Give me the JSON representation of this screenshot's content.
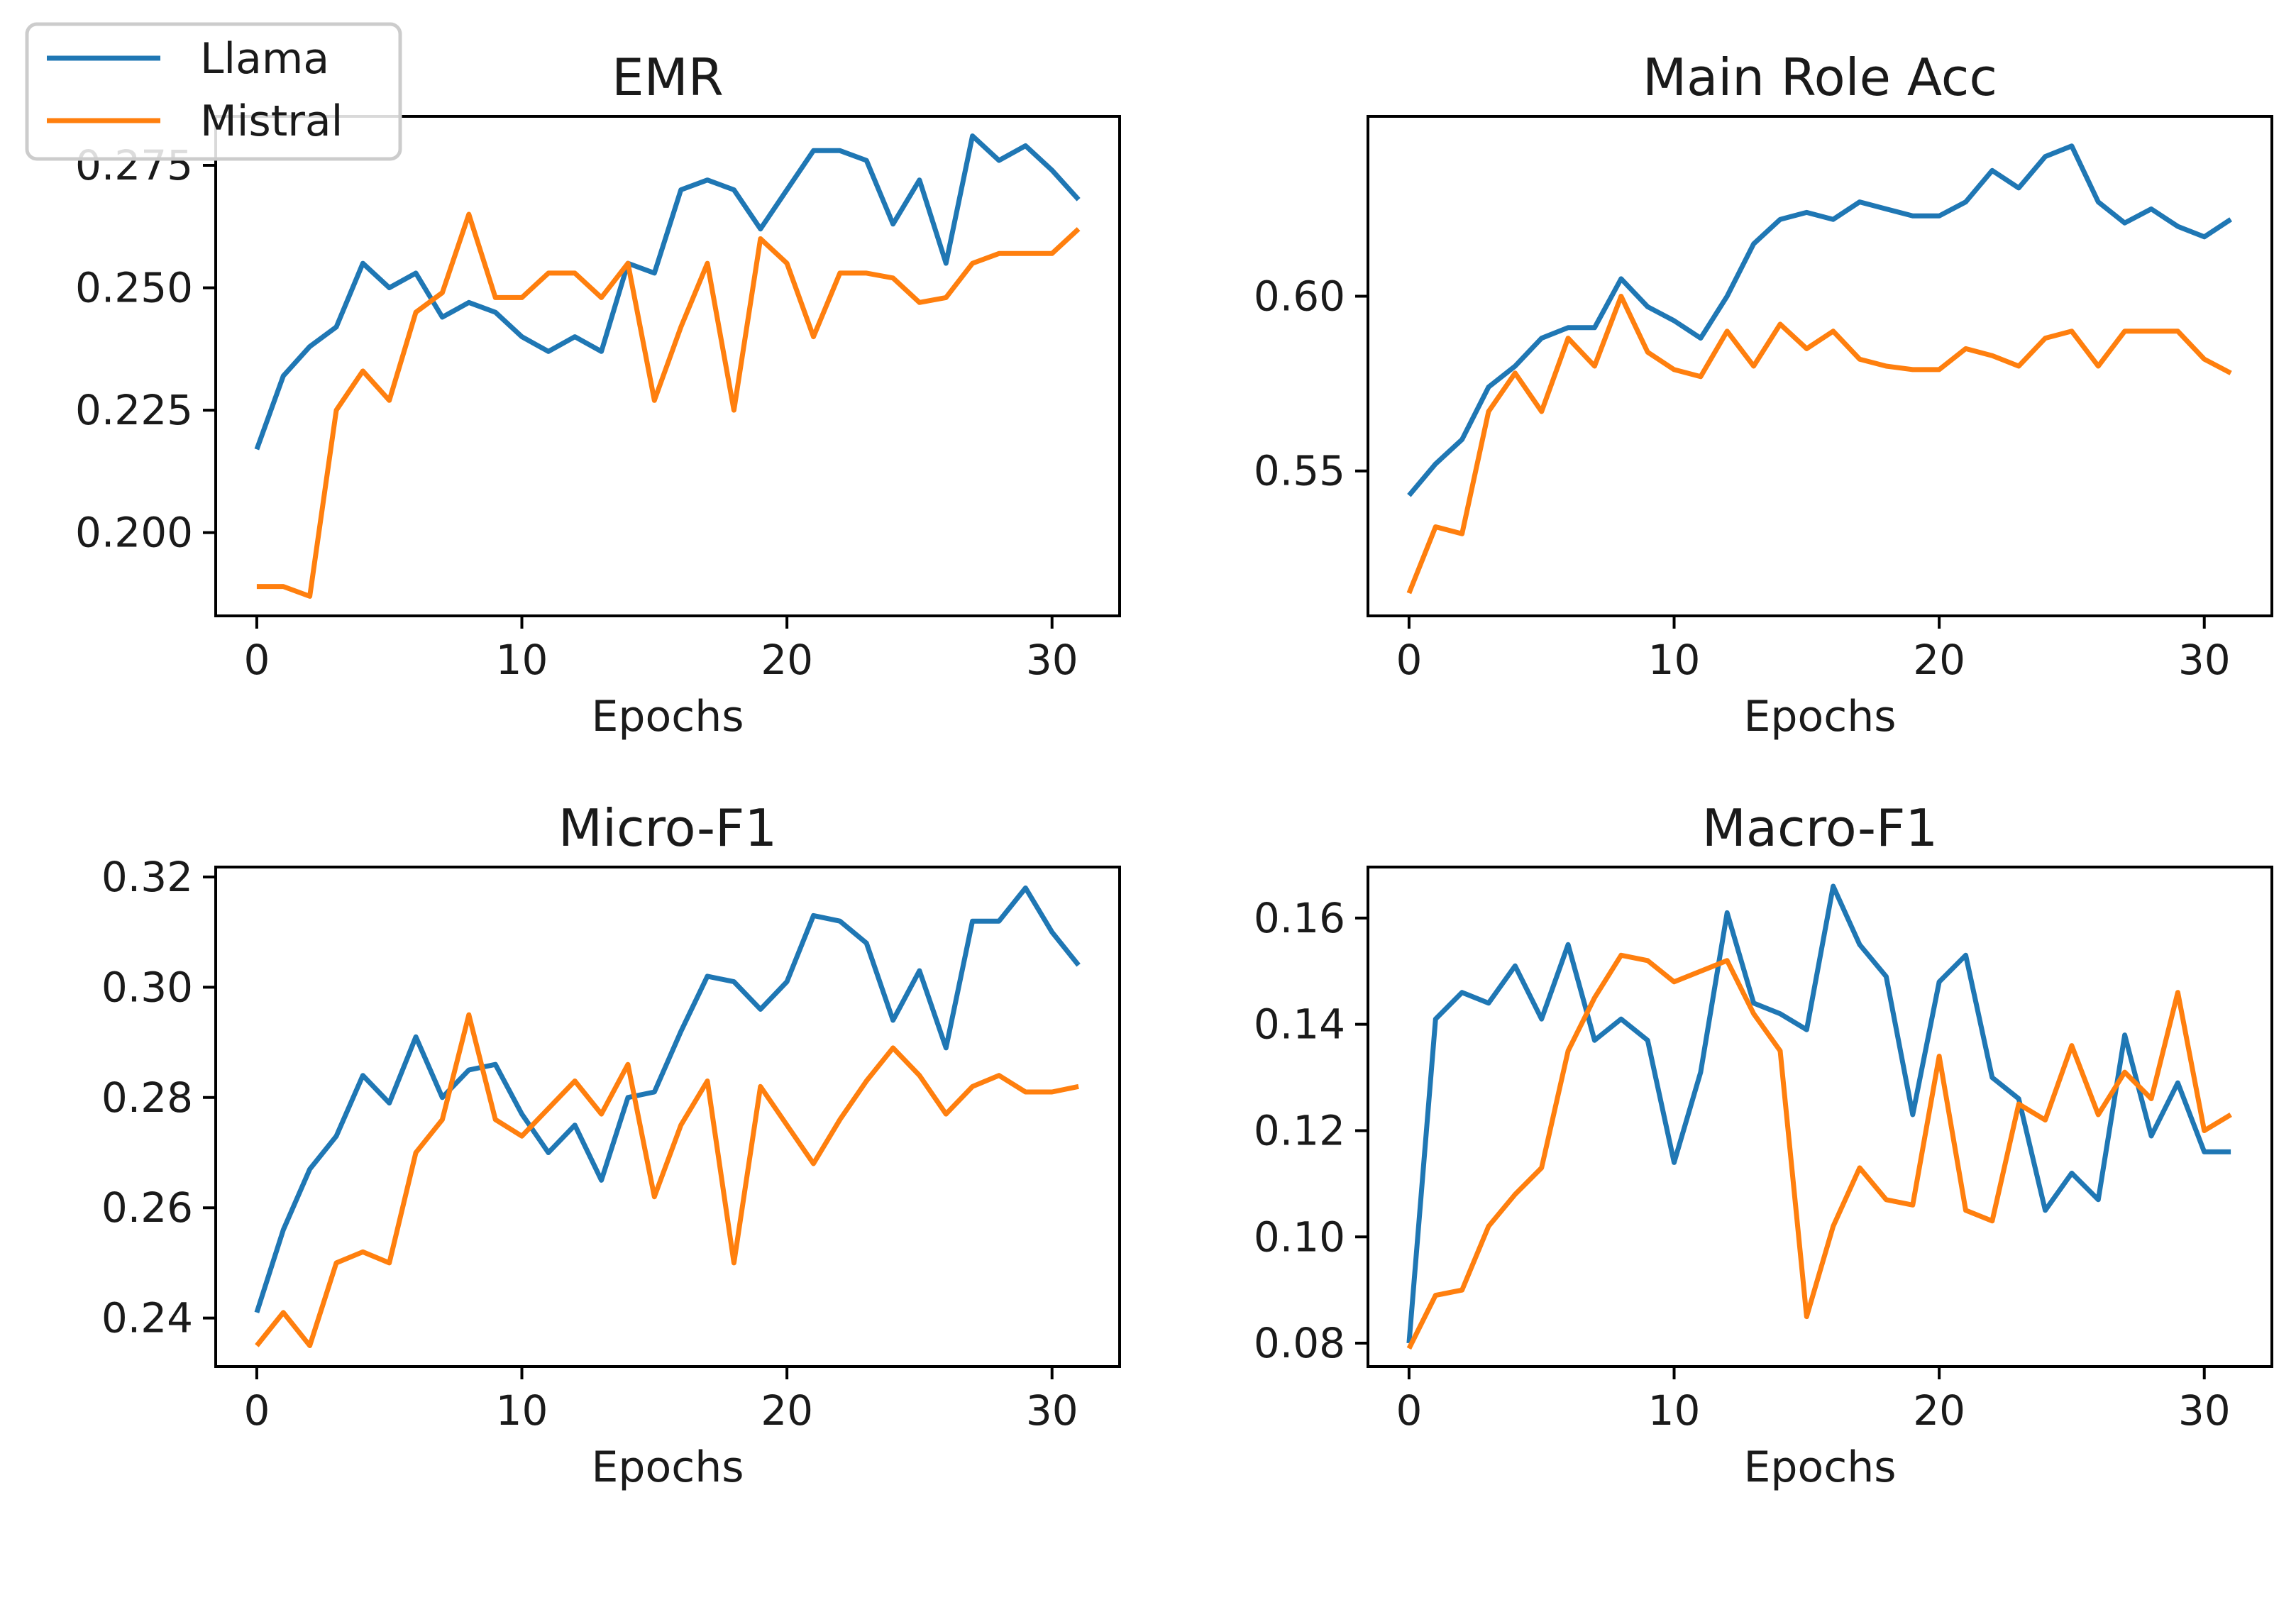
{
  "legend": {
    "entries": [
      {
        "label": "Llama",
        "color": "#1f77b4"
      },
      {
        "label": "Mistral",
        "color": "#ff7f0e"
      }
    ],
    "placement": "top-left"
  },
  "chart_data": [
    {
      "type": "line",
      "title": "EMR",
      "xlabel": "Epochs",
      "ylabel": "",
      "xlim": [
        -1.55,
        32.55
      ],
      "ylim": [
        0.183,
        0.285
      ],
      "xticks": [
        "0",
        "10",
        "20",
        "30"
      ],
      "yticks": [
        "0.200",
        "0.225",
        "0.250",
        "0.275"
      ],
      "series": [
        {
          "name": "Llama",
          "color": "#1f77b4",
          "x": [
            0,
            1,
            2,
            3,
            4,
            5,
            6,
            7,
            8,
            9,
            10,
            11,
            12,
            13,
            14,
            15,
            16,
            17,
            18,
            19,
            20,
            21,
            22,
            23,
            24,
            25,
            26,
            27,
            28,
            29,
            30,
            31
          ],
          "y": [
            0.217,
            0.232,
            0.238,
            0.242,
            0.255,
            0.25,
            0.253,
            0.244,
            0.247,
            0.245,
            0.24,
            0.237,
            0.24,
            0.237,
            0.255,
            0.253,
            0.27,
            0.272,
            0.27,
            0.262,
            0.27,
            0.278,
            0.278,
            0.276,
            0.263,
            0.272,
            0.255,
            0.281,
            0.276,
            0.279,
            0.274,
            0.268
          ]
        },
        {
          "name": "Mistral",
          "color": "#ff7f0e",
          "x": [
            0,
            1,
            2,
            3,
            4,
            5,
            6,
            7,
            8,
            9,
            10,
            11,
            12,
            13,
            14,
            15,
            16,
            17,
            18,
            19,
            20,
            21,
            22,
            23,
            24,
            25,
            26,
            27,
            28,
            29,
            30,
            31
          ],
          "y": [
            0.189,
            0.189,
            0.187,
            0.225,
            0.233,
            0.227,
            0.245,
            0.249,
            0.265,
            0.248,
            0.248,
            0.253,
            0.253,
            0.248,
            0.255,
            0.227,
            0.242,
            0.255,
            0.225,
            0.26,
            0.255,
            0.24,
            0.253,
            0.253,
            0.252,
            0.247,
            0.248,
            0.255,
            0.257,
            0.257,
            0.257,
            0.262
          ]
        }
      ]
    },
    {
      "type": "line",
      "title": "Main Role Acc",
      "xlabel": "Epochs",
      "ylabel": "",
      "xlim": [
        -1.55,
        32.55
      ],
      "ylim": [
        0.5085,
        0.6515
      ],
      "xticks": [
        "0",
        "10",
        "20",
        "30"
      ],
      "yticks": [
        "0.55",
        "0.60"
      ],
      "series": [
        {
          "name": "Llama",
          "color": "#1f77b4",
          "x": [
            0,
            1,
            2,
            3,
            4,
            5,
            6,
            7,
            8,
            9,
            10,
            11,
            12,
            13,
            14,
            15,
            16,
            17,
            18,
            19,
            20,
            21,
            22,
            23,
            24,
            25,
            26,
            27,
            28,
            29,
            30,
            31
          ],
          "y": [
            0.543,
            0.552,
            0.559,
            0.574,
            0.58,
            0.588,
            0.591,
            0.591,
            0.605,
            0.597,
            0.593,
            0.588,
            0.6,
            0.615,
            0.622,
            0.624,
            0.622,
            0.627,
            0.625,
            0.623,
            0.623,
            0.627,
            0.636,
            0.631,
            0.64,
            0.643,
            0.627,
            0.621,
            0.625,
            0.62,
            0.617,
            0.622
          ]
        },
        {
          "name": "Mistral",
          "color": "#ff7f0e",
          "x": [
            0,
            1,
            2,
            3,
            4,
            5,
            6,
            7,
            8,
            9,
            10,
            11,
            12,
            13,
            14,
            15,
            16,
            17,
            18,
            19,
            20,
            21,
            22,
            23,
            24,
            25,
            26,
            27,
            28,
            29,
            30,
            31
          ],
          "y": [
            0.515,
            0.534,
            0.532,
            0.567,
            0.578,
            0.567,
            0.588,
            0.58,
            0.6,
            0.584,
            0.579,
            0.577,
            0.59,
            0.58,
            0.592,
            0.585,
            0.59,
            0.582,
            0.58,
            0.579,
            0.579,
            0.585,
            0.583,
            0.58,
            0.588,
            0.59,
            0.58,
            0.59,
            0.59,
            0.59,
            0.582,
            0.578
          ]
        }
      ]
    },
    {
      "type": "line",
      "title": "Micro-F1",
      "xlabel": "Epochs",
      "ylabel": "",
      "xlim": [
        -1.55,
        32.55
      ],
      "ylim": [
        0.2312,
        0.3218
      ],
      "xticks": [
        "0",
        "10",
        "20",
        "30"
      ],
      "yticks": [
        "0.24",
        "0.26",
        "0.28",
        "0.30",
        "0.32"
      ],
      "series": [
        {
          "name": "Llama",
          "color": "#1f77b4",
          "x": [
            0,
            1,
            2,
            3,
            4,
            5,
            6,
            7,
            8,
            9,
            10,
            11,
            12,
            13,
            14,
            15,
            16,
            17,
            18,
            19,
            20,
            21,
            22,
            23,
            24,
            25,
            26,
            27,
            28,
            29,
            30,
            31
          ],
          "y": [
            0.241,
            0.256,
            0.267,
            0.273,
            0.284,
            0.279,
            0.291,
            0.28,
            0.285,
            0.286,
            0.277,
            0.27,
            0.275,
            0.265,
            0.28,
            0.281,
            0.292,
            0.302,
            0.301,
            0.296,
            0.301,
            0.313,
            0.312,
            0.308,
            0.294,
            0.303,
            0.289,
            0.312,
            0.312,
            0.318,
            0.31,
            0.304
          ]
        },
        {
          "name": "Mistral",
          "color": "#ff7f0e",
          "x": [
            0,
            1,
            2,
            3,
            4,
            5,
            6,
            7,
            8,
            9,
            10,
            11,
            12,
            13,
            14,
            15,
            16,
            17,
            18,
            19,
            20,
            21,
            22,
            23,
            24,
            25,
            26,
            27,
            28,
            29,
            30,
            31
          ],
          "y": [
            0.235,
            0.241,
            0.235,
            0.25,
            0.252,
            0.25,
            0.27,
            0.276,
            0.295,
            0.276,
            0.273,
            0.278,
            0.283,
            0.277,
            0.286,
            0.262,
            0.275,
            0.283,
            0.25,
            0.282,
            0.275,
            0.268,
            0.276,
            0.283,
            0.289,
            0.284,
            0.277,
            0.282,
            0.284,
            0.281,
            0.281,
            0.282
          ]
        }
      ]
    },
    {
      "type": "line",
      "title": "Macro-F1",
      "xlabel": "Epochs",
      "ylabel": "",
      "xlim": [
        -1.55,
        32.55
      ],
      "ylim": [
        0.0756,
        0.1696
      ],
      "xticks": [
        "0",
        "10",
        "20",
        "30"
      ],
      "yticks": [
        "0.08",
        "0.10",
        "0.12",
        "0.14",
        "0.16"
      ],
      "series": [
        {
          "name": "Llama",
          "color": "#1f77b4",
          "x": [
            0,
            1,
            2,
            3,
            4,
            5,
            6,
            7,
            8,
            9,
            10,
            11,
            12,
            13,
            14,
            15,
            16,
            17,
            18,
            19,
            20,
            21,
            22,
            23,
            24,
            25,
            26,
            27,
            28,
            29,
            30,
            31
          ],
          "y": [
            0.08,
            0.141,
            0.146,
            0.144,
            0.151,
            0.141,
            0.155,
            0.137,
            0.141,
            0.137,
            0.114,
            0.131,
            0.161,
            0.144,
            0.142,
            0.139,
            0.166,
            0.155,
            0.149,
            0.123,
            0.148,
            0.153,
            0.13,
            0.126,
            0.105,
            0.112,
            0.107,
            0.138,
            0.119,
            0.129,
            0.116,
            0.116
          ]
        },
        {
          "name": "Mistral",
          "color": "#ff7f0e",
          "x": [
            0,
            1,
            2,
            3,
            4,
            5,
            6,
            7,
            8,
            9,
            10,
            11,
            12,
            13,
            14,
            15,
            16,
            17,
            18,
            19,
            20,
            21,
            22,
            23,
            24,
            25,
            26,
            27,
            28,
            29,
            30,
            31
          ],
          "y": [
            0.079,
            0.089,
            0.09,
            0.102,
            0.108,
            0.113,
            0.135,
            0.145,
            0.153,
            0.152,
            0.148,
            0.15,
            0.152,
            0.142,
            0.135,
            0.085,
            0.102,
            0.113,
            0.107,
            0.106,
            0.134,
            0.105,
            0.103,
            0.125,
            0.122,
            0.136,
            0.123,
            0.131,
            0.126,
            0.146,
            0.12,
            0.123
          ]
        }
      ]
    }
  ]
}
